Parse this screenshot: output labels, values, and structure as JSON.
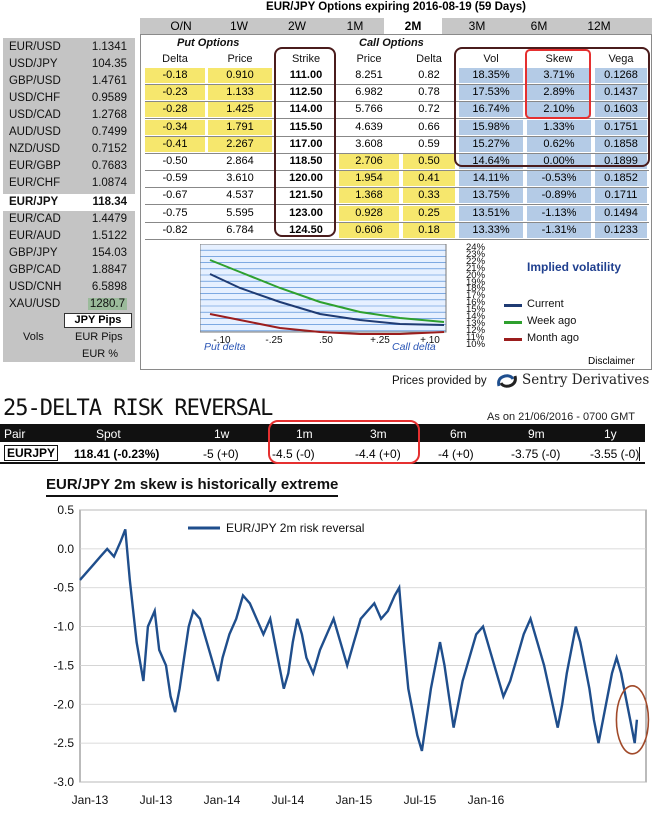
{
  "title": "EUR/JPY Options expiring 2016-08-19 (59 Days)",
  "tabs": [
    "O/N",
    "1W",
    "2W",
    "1M",
    "2M",
    "3M",
    "6M",
    "12M"
  ],
  "active_tab": "2M",
  "pairs": [
    {
      "pair": "EUR/USD",
      "price": "1.1341"
    },
    {
      "pair": "USD/JPY",
      "price": "104.35"
    },
    {
      "pair": "GBP/USD",
      "price": "1.4761"
    },
    {
      "pair": "USD/CHF",
      "price": "0.9589"
    },
    {
      "pair": "USD/CAD",
      "price": "1.2768"
    },
    {
      "pair": "AUD/USD",
      "price": "0.7499"
    },
    {
      "pair": "NZD/USD",
      "price": "0.7152"
    },
    {
      "pair": "EUR/GBP",
      "price": "0.7683"
    },
    {
      "pair": "EUR/CHF",
      "price": "1.0874"
    },
    {
      "pair": "EUR/JPY",
      "price": "118.34"
    },
    {
      "pair": "EUR/CAD",
      "price": "1.4479"
    },
    {
      "pair": "EUR/AUD",
      "price": "1.5122"
    },
    {
      "pair": "GBP/JPY",
      "price": "154.03"
    },
    {
      "pair": "GBP/CAD",
      "price": "1.8847"
    },
    {
      "pair": "USD/CNH",
      "price": "6.5898"
    },
    {
      "pair": "XAU/USD",
      "price": "1280.7"
    }
  ],
  "pips_label": "JPY Pips",
  "vols_label": "Vols",
  "eur_pips_label": "EUR Pips",
  "eur_pct_label": "EUR %",
  "table": {
    "put_header": "Put Options",
    "call_header": "Call Options",
    "columns": [
      "Delta",
      "Price",
      "Strike",
      "Price",
      "Delta",
      "Vol",
      "Skew",
      "Vega"
    ],
    "rows": [
      {
        "pdelta": "-0.18",
        "pprice": "0.910",
        "strike": "111.00",
        "cprice": "8.251",
        "cdelta": "0.82",
        "vol": "18.35%",
        "skew": "3.71%",
        "vega": "0.1268"
      },
      {
        "pdelta": "-0.23",
        "pprice": "1.133",
        "strike": "112.50",
        "cprice": "6.982",
        "cdelta": "0.78",
        "vol": "17.53%",
        "skew": "2.89%",
        "vega": "0.1437"
      },
      {
        "pdelta": "-0.28",
        "pprice": "1.425",
        "strike": "114.00",
        "cprice": "5.766",
        "cdelta": "0.72",
        "vol": "16.74%",
        "skew": "2.10%",
        "vega": "0.1603"
      },
      {
        "pdelta": "-0.34",
        "pprice": "1.791",
        "strike": "115.50",
        "cprice": "4.639",
        "cdelta": "0.66",
        "vol": "15.98%",
        "skew": "1.33%",
        "vega": "0.1751"
      },
      {
        "pdelta": "-0.41",
        "pprice": "2.267",
        "strike": "117.00",
        "cprice": "3.608",
        "cdelta": "0.59",
        "vol": "15.27%",
        "skew": "0.62%",
        "vega": "0.1858"
      },
      {
        "pdelta": "-0.50",
        "pprice": "2.864",
        "strike": "118.50",
        "cprice": "2.706",
        "cdelta": "0.50",
        "vol": "14.64%",
        "skew": "0.00%",
        "vega": "0.1899"
      },
      {
        "pdelta": "-0.59",
        "pprice": "3.610",
        "strike": "120.00",
        "cprice": "1.954",
        "cdelta": "0.41",
        "vol": "14.11%",
        "skew": "-0.53%",
        "vega": "0.1852"
      },
      {
        "pdelta": "-0.67",
        "pprice": "4.537",
        "strike": "121.50",
        "cprice": "1.368",
        "cdelta": "0.33",
        "vol": "13.75%",
        "skew": "-0.89%",
        "vega": "0.1711"
      },
      {
        "pdelta": "-0.75",
        "pprice": "5.595",
        "strike": "123.00",
        "cprice": "0.928",
        "cdelta": "0.25",
        "vol": "13.51%",
        "skew": "-1.13%",
        "vega": "0.1494"
      },
      {
        "pdelta": "-0.82",
        "pprice": "6.784",
        "strike": "124.50",
        "cprice": "0.606",
        "cdelta": "0.18",
        "vol": "13.33%",
        "skew": "-1.31%",
        "vega": "0.1233"
      }
    ]
  },
  "mini_chart": {
    "x_ticks": [
      "-.10",
      "-.25",
      ".50",
      "+.25",
      "+.10"
    ],
    "put_label": "Put delta",
    "call_label": "Call delta",
    "y_ticks": [
      "24%",
      "23%",
      "22%",
      "21%",
      "20%",
      "19%",
      "18%",
      "17%",
      "16%",
      "15%",
      "14%",
      "13%",
      "12%",
      "11%",
      "10%"
    ],
    "legend_title": "Implied volatility",
    "legend_current": "Current",
    "legend_week": "Week ago",
    "legend_month": "Month ago",
    "colors": {
      "current": "#1f3b73",
      "week": "#2ea02e",
      "month": "#9b1d1d"
    }
  },
  "disclaimer": "Disclaimer",
  "provided_by": "Prices provided by",
  "provider": "Sentry Derivatives",
  "rr": {
    "title": "25-DELTA RISK REVERSAL",
    "as_of": "As on 21/06/2016 - 0700 GMT",
    "headers": [
      "Pair",
      "Spot",
      "1w",
      "1m",
      "3m",
      "6m",
      "9m",
      "1y"
    ],
    "row": [
      "EURJPY",
      "118.41 (-0.23%)",
      "-5 (+0)",
      "-4.5 (-0)",
      "-4.4 (+0)",
      "-4 (+0)",
      "-3.75 (-0)",
      "-3.55 (-0)"
    ]
  },
  "chart_data": {
    "type": "line",
    "title": "EUR/JPY 2m skew is historically extreme",
    "series": [
      {
        "name": "EUR/JPY 2m risk reversal"
      }
    ],
    "x_ticks": [
      "Jan-13",
      "Jul-13",
      "Jan-14",
      "Jul-14",
      "Jan-15",
      "Jul-15",
      "Jan-16"
    ],
    "y_ticks": [
      "0.5",
      "0.0",
      "-0.5",
      "-1.0",
      "-1.5",
      "-2.0",
      "-2.5",
      "-3.0"
    ],
    "ylim": [
      -3.0,
      0.5
    ],
    "line_color": "#1f4e8c",
    "points": [
      [
        0,
        -0.4
      ],
      [
        3,
        -0.3
      ],
      [
        6,
        -0.2
      ],
      [
        9,
        -0.1
      ],
      [
        12,
        0.0
      ],
      [
        15,
        -0.1
      ],
      [
        18,
        0.1
      ],
      [
        20,
        0.25
      ],
      [
        22,
        -0.4
      ],
      [
        25,
        -1.2
      ],
      [
        28,
        -1.7
      ],
      [
        30,
        -1.0
      ],
      [
        33,
        -0.8
      ],
      [
        35,
        -1.3
      ],
      [
        38,
        -1.5
      ],
      [
        40,
        -1.9
      ],
      [
        42,
        -2.1
      ],
      [
        44,
        -1.8
      ],
      [
        46,
        -1.4
      ],
      [
        48,
        -1.0
      ],
      [
        50,
        -0.8
      ],
      [
        53,
        -0.9
      ],
      [
        56,
        -1.2
      ],
      [
        59,
        -1.5
      ],
      [
        61,
        -1.7
      ],
      [
        63,
        -1.4
      ],
      [
        66,
        -1.1
      ],
      [
        69,
        -0.9
      ],
      [
        72,
        -0.6
      ],
      [
        75,
        -0.7
      ],
      [
        78,
        -0.9
      ],
      [
        81,
        -1.1
      ],
      [
        84,
        -0.9
      ],
      [
        86,
        -1.2
      ],
      [
        88,
        -1.5
      ],
      [
        90,
        -1.8
      ],
      [
        92,
        -1.6
      ],
      [
        94,
        -1.2
      ],
      [
        96,
        -0.9
      ],
      [
        98,
        -1.1
      ],
      [
        100,
        -1.4
      ],
      [
        103,
        -1.6
      ],
      [
        106,
        -1.3
      ],
      [
        109,
        -1.1
      ],
      [
        112,
        -0.9
      ],
      [
        115,
        -1.2
      ],
      [
        118,
        -1.5
      ],
      [
        121,
        -1.2
      ],
      [
        124,
        -0.9
      ],
      [
        127,
        -0.8
      ],
      [
        130,
        -0.7
      ],
      [
        133,
        -0.9
      ],
      [
        136,
        -0.8
      ],
      [
        139,
        -0.6
      ],
      [
        141,
        -0.5
      ],
      [
        143,
        -1.2
      ],
      [
        145,
        -1.8
      ],
      [
        147,
        -2.1
      ],
      [
        149,
        -2.4
      ],
      [
        151,
        -2.6
      ],
      [
        153,
        -2.2
      ],
      [
        155,
        -1.8
      ],
      [
        157,
        -1.5
      ],
      [
        159,
        -1.2
      ],
      [
        161,
        -1.5
      ],
      [
        163,
        -1.9
      ],
      [
        165,
        -2.3
      ],
      [
        167,
        -2.0
      ],
      [
        169,
        -1.7
      ],
      [
        172,
        -1.4
      ],
      [
        175,
        -1.1
      ],
      [
        178,
        -1.0
      ],
      [
        181,
        -1.3
      ],
      [
        184,
        -1.6
      ],
      [
        187,
        -1.9
      ],
      [
        190,
        -1.7
      ],
      [
        193,
        -1.4
      ],
      [
        196,
        -1.1
      ],
      [
        199,
        -0.9
      ],
      [
        202,
        -1.2
      ],
      [
        205,
        -1.5
      ],
      [
        208,
        -1.9
      ],
      [
        211,
        -2.3
      ],
      [
        213,
        -2.0
      ],
      [
        215,
        -1.6
      ],
      [
        217,
        -1.3
      ],
      [
        219,
        -1.0
      ],
      [
        221,
        -1.2
      ],
      [
        223,
        -1.5
      ],
      [
        225,
        -1.8
      ],
      [
        227,
        -2.2
      ],
      [
        229,
        -2.5
      ],
      [
        231,
        -2.2
      ],
      [
        233,
        -1.9
      ],
      [
        235,
        -1.6
      ],
      [
        237,
        -1.4
      ],
      [
        239,
        -1.6
      ],
      [
        241,
        -1.9
      ],
      [
        243,
        -2.2
      ],
      [
        245,
        -2.5
      ],
      [
        246,
        -2.2
      ]
    ],
    "x_domain": [
      0,
      250
    ]
  }
}
